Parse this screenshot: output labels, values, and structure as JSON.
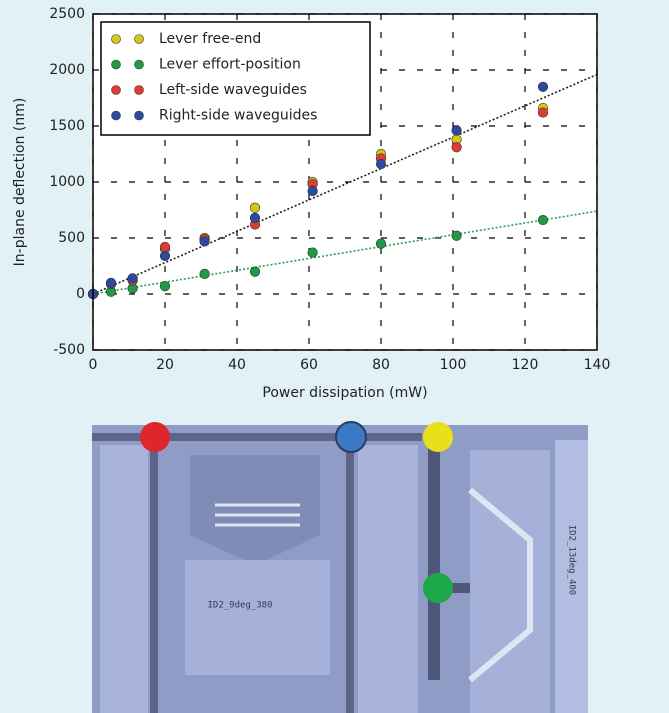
{
  "chart_data": {
    "type": "scatter",
    "xlabel": "Power dissipation (mW)",
    "ylabel": "In-plane deflection (nm)",
    "x": [
      0,
      5,
      11,
      20,
      31,
      45,
      61,
      80,
      101,
      125
    ],
    "series": [
      {
        "name": "Lever free-end",
        "color": "#d6c814",
        "values": [
          0,
          90,
          130,
          400,
          500,
          770,
          1000,
          1250,
          1380,
          1660
        ]
      },
      {
        "name": "Lever effort-position",
        "color": "#1f9a45",
        "values": [
          0,
          20,
          50,
          70,
          180,
          200,
          370,
          450,
          520,
          660
        ]
      },
      {
        "name": "Left-side waveguides",
        "color": "#e23a32",
        "values": [
          0,
          90,
          120,
          420,
          490,
          620,
          980,
          1210,
          1310,
          1620
        ]
      },
      {
        "name": "Right-side waveguides",
        "color": "#2c4aa3",
        "values": [
          0,
          100,
          140,
          340,
          470,
          680,
          920,
          1160,
          1460,
          1850
        ]
      }
    ],
    "trend_lines": [
      {
        "color": "#222222",
        "x": [
          0,
          140
        ],
        "values": [
          0,
          1960
        ]
      },
      {
        "color": "#2aa050",
        "x": [
          0,
          140
        ],
        "values": [
          0,
          740
        ]
      }
    ],
    "xlim": [
      0,
      140
    ],
    "xticks": [
      0,
      20,
      40,
      60,
      80,
      100,
      120,
      140
    ],
    "ylim": [
      -500,
      2500
    ],
    "yticks": [
      -500,
      0,
      500,
      1000,
      1500,
      2000,
      2500
    ],
    "grid": true,
    "legend": "upper-left"
  },
  "image_labels": [
    "ID2_9deg_380",
    "ID2_13deg_400"
  ]
}
